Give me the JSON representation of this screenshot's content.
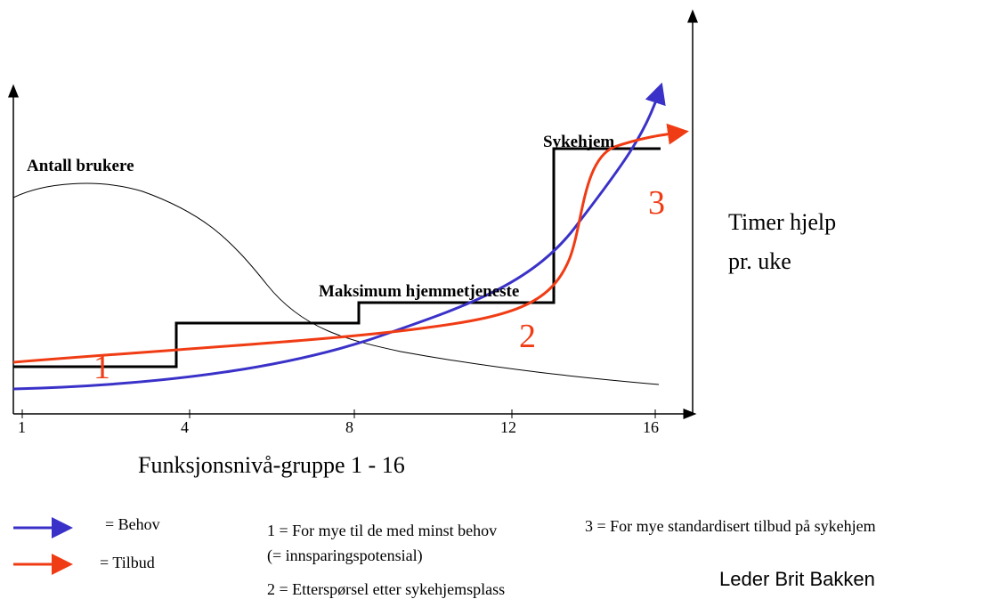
{
  "diagram": {
    "y_label": "Antall brukere",
    "y2_label_line1": "Timer hjelp",
    "y2_label_line2": "pr. uke",
    "x_label": "Funksjonsnivå-gruppe 1 - 16",
    "x_ticks": [
      "1",
      "4",
      "8",
      "12",
      "16"
    ],
    "step_labels": {
      "top": "Sykehjem",
      "middle": "Maksimum hjemmetjeneste"
    },
    "markers": [
      "1",
      "2",
      "3"
    ],
    "legend": {
      "behov": "= Behov",
      "tilbud": "= Tilbud"
    },
    "notes": {
      "n1_line1": "1 = For mye til de med minst behov",
      "n1_line2": "(= innsparingspotensial)",
      "n2": "2 = Etterspørsel etter sykehjemsplass",
      "n3": "3 = For mye standardisert tilbud på sykehjem"
    },
    "author": "Leder Brit Bakken"
  }
}
